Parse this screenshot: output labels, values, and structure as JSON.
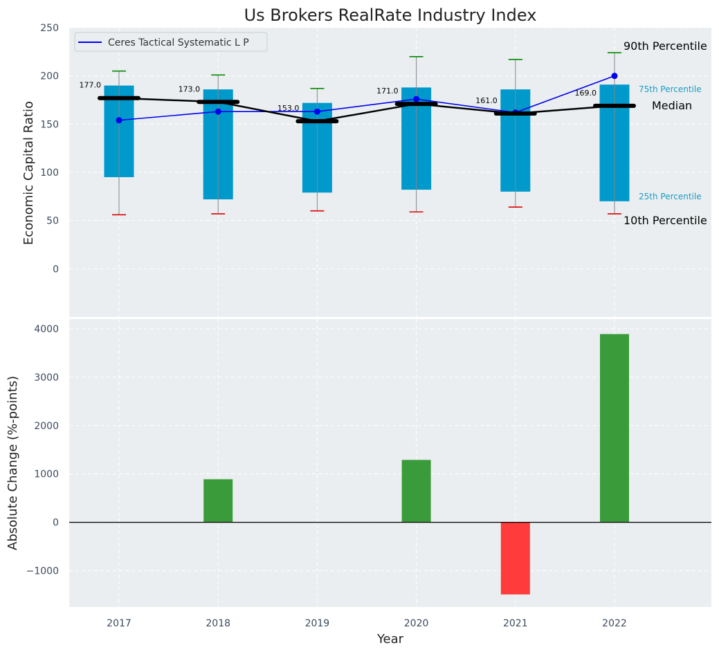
{
  "chart_data": [
    {
      "type": "box",
      "title": "Us Brokers RealRate Industry Index",
      "ylabel": "Economic Capital Ratio",
      "ylim": [
        -50,
        250
      ],
      "yticks": [
        0,
        50,
        100,
        150,
        200,
        250
      ],
      "grid": true,
      "categories": [
        "2017",
        "2018",
        "2019",
        "2020",
        "2021",
        "2022"
      ],
      "p10": [
        56,
        57,
        60,
        59,
        64,
        57
      ],
      "p25": [
        95,
        72,
        79,
        82,
        80,
        70
      ],
      "median": [
        177,
        173,
        153,
        171,
        161,
        169
      ],
      "p75": [
        190,
        186,
        172,
        188,
        186,
        191
      ],
      "p90": [
        205,
        201,
        187,
        220,
        217,
        224
      ],
      "median_labels": [
        "177.0",
        "173.0",
        "153.0",
        "171.0",
        "161.0",
        "169.0"
      ],
      "series": [
        {
          "name": "Ceres Tactical Systematic L P",
          "values": [
            154,
            163,
            163,
            176,
            162,
            200
          ]
        }
      ],
      "legend": {
        "position": "top-left",
        "label": "Ceres Tactical Systematic L P"
      },
      "annotations": {
        "p90": "90th Percentile",
        "p75": "75th Percentile",
        "median": "Median",
        "p25": "25th Percentile",
        "p10": "10th Percentile"
      }
    },
    {
      "type": "bar",
      "ylabel": "Absolute Change (%-points)",
      "xlabel": "Year",
      "ylim": [
        -1750,
        4200
      ],
      "yticks": [
        -1000,
        0,
        1000,
        2000,
        3000,
        4000
      ],
      "ytick_labels": [
        "−1000",
        "0",
        "1000",
        "2000",
        "3000",
        "4000"
      ],
      "grid": true,
      "categories": [
        "2017",
        "2018",
        "2019",
        "2020",
        "2021",
        "2022"
      ],
      "values": [
        0,
        890,
        0,
        1290,
        -1490,
        3890
      ]
    }
  ],
  "colors": {
    "box_fill": "#0099cc",
    "panel_bg": "#eaeef0",
    "series_line": "#0000ee",
    "median_line": "#000000",
    "p90_cap": "#008800",
    "p10_cap": "#dd0000",
    "bar_positive": "#3a9b3a",
    "bar_negative": "#ff3b3b",
    "p75_p25_text": "#1a9cc4"
  }
}
